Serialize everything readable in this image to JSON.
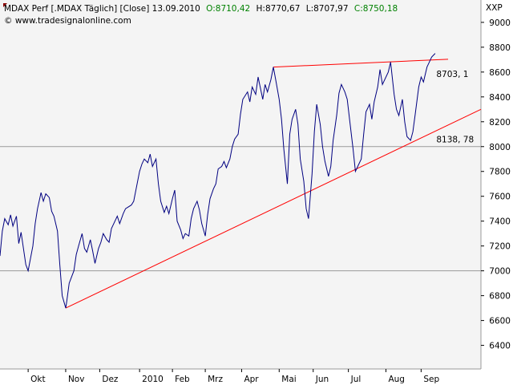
{
  "header": {
    "title": "MDAX Perf [.MDAX  Täglich] [Close]  13.09.2010",
    "open": "O:8710,42",
    "high": "H:8770,67",
    "low": "L:8707,97",
    "close": "C:8750,18",
    "copyright": "© www.tradesignalonline.com",
    "colors": {
      "title": "#000000",
      "open_close": "#008000"
    }
  },
  "chart_data": {
    "type": "line",
    "title": "MDAX Perf [.MDAX  Täglich] [Close]",
    "date": "13.09.2010",
    "yaxis_label": "XXP",
    "ylim": [
      6210,
      9180
    ],
    "y_ticks": [
      6400,
      6600,
      6800,
      7000,
      7200,
      7400,
      7600,
      7800,
      8000,
      8200,
      8400,
      8600,
      8800,
      9000
    ],
    "y_tick_labels": [
      "6400",
      "6600",
      "6800",
      "7000",
      "7200",
      "7400",
      "7600",
      "7800",
      "8000",
      "8200",
      "8400",
      "8600",
      "8800",
      "9000"
    ],
    "x_ticks": [
      "2009-10-01",
      "2009-11-02",
      "2009-12-01",
      "2010-01-04",
      "2010-02-01",
      "2010-03-01",
      "2010-04-01",
      "2010-05-03",
      "2010-06-01",
      "2010-07-01",
      "2010-08-02",
      "2010-09-01"
    ],
    "x_tick_labels": [
      "Okt",
      "Nov",
      "Dez",
      "2010",
      "Feb",
      "Mrz",
      "Apr",
      "Mai",
      "Jun",
      "Jul",
      "Aug",
      "Sep"
    ],
    "xlim": [
      "2009-09-07",
      "2010-10-22"
    ],
    "grid": "horizontal at 7000 and 8000",
    "series": [
      {
        "color": "#000080",
        "points": [
          [
            "2009-09-07",
            7120
          ],
          [
            "2009-09-09",
            7320
          ],
          [
            "2009-09-11",
            7420
          ],
          [
            "2009-09-14",
            7370
          ],
          [
            "2009-09-16",
            7450
          ],
          [
            "2009-09-18",
            7360
          ],
          [
            "2009-09-21",
            7440
          ],
          [
            "2009-09-23",
            7220
          ],
          [
            "2009-09-25",
            7310
          ],
          [
            "2009-09-29",
            7050
          ],
          [
            "2009-10-01",
            7000
          ],
          [
            "2009-10-05",
            7200
          ],
          [
            "2009-10-07",
            7380
          ],
          [
            "2009-10-09",
            7500
          ],
          [
            "2009-10-12",
            7630
          ],
          [
            "2009-10-14",
            7560
          ],
          [
            "2009-10-16",
            7620
          ],
          [
            "2009-10-19",
            7590
          ],
          [
            "2009-10-21",
            7480
          ],
          [
            "2009-10-23",
            7440
          ],
          [
            "2009-10-26",
            7320
          ],
          [
            "2009-10-28",
            7050
          ],
          [
            "2009-10-30",
            6800
          ],
          [
            "2009-11-02",
            6700
          ],
          [
            "2009-11-03",
            6760
          ],
          [
            "2009-11-05",
            6900
          ],
          [
            "2009-11-09",
            7000
          ],
          [
            "2009-11-11",
            7130
          ],
          [
            "2009-11-13",
            7200
          ],
          [
            "2009-11-16",
            7300
          ],
          [
            "2009-11-18",
            7180
          ],
          [
            "2009-11-20",
            7150
          ],
          [
            "2009-11-23",
            7250
          ],
          [
            "2009-11-25",
            7160
          ],
          [
            "2009-11-27",
            7060
          ],
          [
            "2009-11-30",
            7180
          ],
          [
            "2009-12-02",
            7230
          ],
          [
            "2009-12-04",
            7300
          ],
          [
            "2009-12-07",
            7250
          ],
          [
            "2009-12-09",
            7230
          ],
          [
            "2009-12-11",
            7340
          ],
          [
            "2009-12-14",
            7400
          ],
          [
            "2009-12-16",
            7440
          ],
          [
            "2009-12-18",
            7380
          ],
          [
            "2009-12-21",
            7460
          ],
          [
            "2009-12-23",
            7500
          ],
          [
            "2009-12-28",
            7530
          ],
          [
            "2009-12-30",
            7560
          ],
          [
            "2010-01-04",
            7800
          ],
          [
            "2010-01-06",
            7860
          ],
          [
            "2010-01-08",
            7900
          ],
          [
            "2010-01-11",
            7870
          ],
          [
            "2010-01-13",
            7940
          ],
          [
            "2010-01-15",
            7840
          ],
          [
            "2010-01-18",
            7900
          ],
          [
            "2010-01-20",
            7700
          ],
          [
            "2010-01-22",
            7560
          ],
          [
            "2010-01-25",
            7470
          ],
          [
            "2010-01-27",
            7520
          ],
          [
            "2010-01-29",
            7460
          ],
          [
            "2010-02-01",
            7580
          ],
          [
            "2010-02-03",
            7650
          ],
          [
            "2010-02-05",
            7400
          ],
          [
            "2010-02-08",
            7330
          ],
          [
            "2010-02-10",
            7260
          ],
          [
            "2010-02-12",
            7300
          ],
          [
            "2010-02-15",
            7280
          ],
          [
            "2010-02-17",
            7420
          ],
          [
            "2010-02-19",
            7500
          ],
          [
            "2010-02-22",
            7560
          ],
          [
            "2010-02-24",
            7490
          ],
          [
            "2010-02-26",
            7380
          ],
          [
            "2010-03-01",
            7280
          ],
          [
            "2010-03-03",
            7450
          ],
          [
            "2010-03-05",
            7580
          ],
          [
            "2010-03-08",
            7660
          ],
          [
            "2010-03-10",
            7700
          ],
          [
            "2010-03-12",
            7820
          ],
          [
            "2010-03-15",
            7840
          ],
          [
            "2010-03-17",
            7880
          ],
          [
            "2010-03-19",
            7830
          ],
          [
            "2010-03-22",
            7900
          ],
          [
            "2010-03-24",
            8000
          ],
          [
            "2010-03-26",
            8060
          ],
          [
            "2010-03-29",
            8100
          ],
          [
            "2010-03-31",
            8260
          ],
          [
            "2010-04-02",
            8380
          ],
          [
            "2010-04-06",
            8440
          ],
          [
            "2010-04-08",
            8360
          ],
          [
            "2010-04-10",
            8480
          ],
          [
            "2010-04-13",
            8420
          ],
          [
            "2010-04-15",
            8560
          ],
          [
            "2010-04-19",
            8380
          ],
          [
            "2010-04-21",
            8500
          ],
          [
            "2010-04-23",
            8440
          ],
          [
            "2010-04-26",
            8540
          ],
          [
            "2010-04-28",
            8640
          ],
          [
            "2010-04-30",
            8540
          ],
          [
            "2010-05-03",
            8380
          ],
          [
            "2010-05-05",
            8220
          ],
          [
            "2010-05-07",
            7980
          ],
          [
            "2010-05-10",
            7700
          ],
          [
            "2010-05-12",
            8100
          ],
          [
            "2010-05-14",
            8220
          ],
          [
            "2010-05-17",
            8300
          ],
          [
            "2010-05-19",
            8180
          ],
          [
            "2010-05-21",
            7900
          ],
          [
            "2010-05-24",
            7720
          ],
          [
            "2010-05-26",
            7500
          ],
          [
            "2010-05-28",
            7420
          ],
          [
            "2010-05-31",
            7780
          ],
          [
            "2010-06-02",
            8120
          ],
          [
            "2010-06-04",
            8340
          ],
          [
            "2010-06-07",
            8180
          ],
          [
            "2010-06-09",
            8000
          ],
          [
            "2010-06-11",
            7880
          ],
          [
            "2010-06-14",
            7760
          ],
          [
            "2010-06-16",
            7840
          ],
          [
            "2010-06-18",
            8050
          ],
          [
            "2010-06-21",
            8250
          ],
          [
            "2010-06-23",
            8430
          ],
          [
            "2010-06-25",
            8500
          ],
          [
            "2010-06-28",
            8440
          ],
          [
            "2010-06-30",
            8380
          ],
          [
            "2010-07-02",
            8220
          ],
          [
            "2010-07-05",
            7980
          ],
          [
            "2010-07-07",
            7800
          ],
          [
            "2010-07-09",
            7840
          ],
          [
            "2010-07-12",
            7900
          ],
          [
            "2010-07-14",
            8100
          ],
          [
            "2010-07-16",
            8280
          ],
          [
            "2010-07-19",
            8340
          ],
          [
            "2010-07-21",
            8220
          ],
          [
            "2010-07-23",
            8360
          ],
          [
            "2010-07-26",
            8480
          ],
          [
            "2010-07-28",
            8620
          ],
          [
            "2010-07-30",
            8500
          ],
          [
            "2010-08-02",
            8560
          ],
          [
            "2010-08-04",
            8600
          ],
          [
            "2010-08-06",
            8680
          ],
          [
            "2010-08-09",
            8420
          ],
          [
            "2010-08-11",
            8300
          ],
          [
            "2010-08-13",
            8250
          ],
          [
            "2010-08-16",
            8380
          ],
          [
            "2010-08-18",
            8200
          ],
          [
            "2010-08-20",
            8080
          ],
          [
            "2010-08-23",
            8050
          ],
          [
            "2010-08-25",
            8120
          ],
          [
            "2010-08-27",
            8260
          ],
          [
            "2010-08-30",
            8480
          ],
          [
            "2010-09-01",
            8560
          ],
          [
            "2010-09-03",
            8520
          ],
          [
            "2010-09-06",
            8640
          ],
          [
            "2010-09-08",
            8680
          ],
          [
            "2010-09-10",
            8720
          ],
          [
            "2010-09-13",
            8750
          ]
        ]
      }
    ],
    "trendlines": [
      {
        "color": "#ff0000",
        "from": [
          "2009-11-02",
          6700
        ],
        "to": [
          "2010-10-22",
          8300
        ]
      },
      {
        "color": "#ff0000",
        "from": [
          "2010-04-28",
          8640
        ],
        "to": [
          "2010-09-24",
          8703
        ]
      }
    ],
    "annotations": [
      {
        "text": "8703, 1",
        "color": "#ff0000",
        "date": "2010-09-14",
        "value": 8560
      },
      {
        "text": "8138, 78",
        "color": "#ff0000",
        "date": "2010-09-14",
        "value": 8035
      }
    ]
  }
}
